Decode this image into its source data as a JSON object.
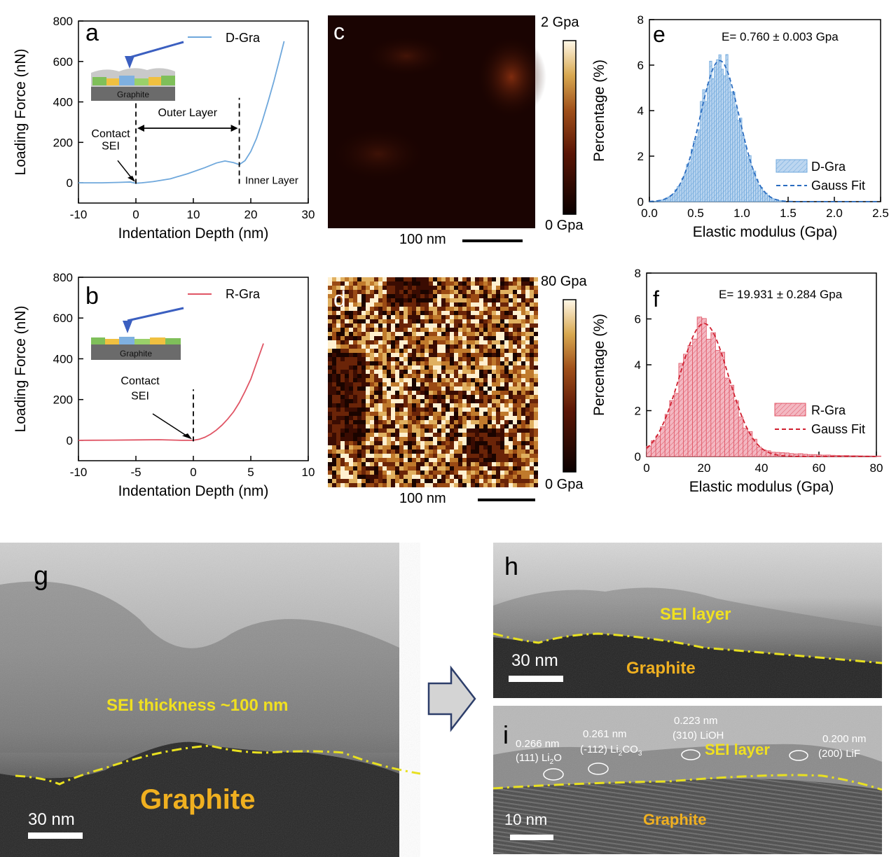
{
  "chart_data": [
    {
      "panel": "a",
      "type": "line",
      "ylabel": "Loading Force (nN)",
      "xlabel": "Indentation Depth (nm)",
      "xlim": [
        -10,
        30
      ],
      "ylim": [
        -100,
        800
      ],
      "xticks": [
        -10,
        0,
        10,
        20,
        30
      ],
      "yticks": [
        0,
        200,
        400,
        600,
        800
      ],
      "series": [
        {
          "name": "D-Gra",
          "color": "#6fa8dc",
          "x": [
            -10,
            -6,
            -3,
            -1,
            0,
            1,
            3,
            6,
            9,
            12,
            14,
            15.5,
            17,
            18,
            19,
            20,
            21,
            22,
            23,
            24,
            25,
            25.8
          ],
          "y": [
            0,
            0,
            2,
            4,
            -2,
            0,
            6,
            20,
            45,
            75,
            98,
            108,
            100,
            90,
            110,
            155,
            220,
            305,
            400,
            500,
            610,
            700
          ]
        }
      ],
      "annotations": [
        "Contact SEI",
        "Outer Layer",
        "Inner Layer"
      ],
      "markers": [
        0,
        18
      ],
      "inset_label": "Graphite"
    },
    {
      "panel": "b",
      "type": "line",
      "ylabel": "Loading Force (nN)",
      "xlabel": "Indentation Depth (nm)",
      "xlim": [
        -10,
        10
      ],
      "ylim": [
        -100,
        800
      ],
      "xticks": [
        -10,
        -5,
        0,
        5,
        10
      ],
      "yticks": [
        0,
        200,
        400,
        600,
        800
      ],
      "series": [
        {
          "name": "R-Gra",
          "color": "#e05565",
          "x": [
            -10,
            -7,
            -5,
            -3,
            -1,
            0,
            0.5,
            1,
            1.5,
            2,
            2.5,
            3,
            3.5,
            4,
            4.5,
            5,
            5.5,
            6.1
          ],
          "y": [
            0,
            1,
            2,
            3,
            0,
            0,
            5,
            15,
            30,
            50,
            75,
            105,
            140,
            185,
            240,
            300,
            380,
            475
          ]
        }
      ],
      "annotations": [
        "Contact SEI"
      ],
      "markers": [
        0
      ],
      "inset_label": "Graphite"
    },
    {
      "panel": "e",
      "type": "bar",
      "ylabel": "Percentage (%)",
      "xlabel": "Elastic modulus (Gpa)",
      "xlim": [
        0,
        2.5
      ],
      "ylim": [
        0,
        8
      ],
      "xticks": [
        0.0,
        0.5,
        1.0,
        1.5,
        2.0,
        2.5
      ],
      "yticks": [
        0,
        2,
        4,
        6,
        8
      ],
      "annotation": "E= 0.760 ± 0.003 Gpa",
      "fit": {
        "mean": 0.76,
        "sigma": 0.21,
        "peak": 6.2
      },
      "bin_width": 0.025,
      "legend": [
        "D-Gra",
        "Gauss Fit"
      ],
      "color": "#6fa8dc"
    },
    {
      "panel": "f",
      "type": "bar",
      "ylabel": "Percentage (%)",
      "xlabel": "Elastic modulus (Gpa)",
      "xlim": [
        0,
        80
      ],
      "ylim": [
        0,
        8
      ],
      "xticks": [
        0,
        20,
        40,
        60,
        80
      ],
      "yticks": [
        0,
        2,
        4,
        6,
        8
      ],
      "annotation": "E= 19.931 ± 0.284 Gpa",
      "fit": {
        "mean": 20,
        "sigma": 8.5,
        "peak": 5.8
      },
      "bin_width": 1.6,
      "legend": [
        "R-Gra",
        "Gauss Fit"
      ],
      "color": "#e05565"
    },
    {
      "panel": "c",
      "type": "heatmap",
      "colorbar_max": "2 Gpa",
      "colorbar_min": "0 Gpa",
      "scalebar": "100 nm"
    },
    {
      "panel": "d",
      "type": "heatmap",
      "colorbar_max": "80 Gpa",
      "colorbar_min": "0 Gpa",
      "scalebar": "100 nm"
    }
  ],
  "tem": {
    "g": {
      "label": "g",
      "sei": "SEI thickness  ~100 nm",
      "graphite": "Graphite",
      "scalebar": "30 nm"
    },
    "h": {
      "label": "h",
      "sei": "SEI layer",
      "graphite": "Graphite",
      "scalebar": "30 nm"
    },
    "i": {
      "label": "i",
      "sei": "SEI layer",
      "graphite": "Graphite",
      "scalebar": "10 nm",
      "lattice": [
        {
          "d": "0.266 nm",
          "hkl": "(111)",
          "phase": "Li",
          "sub": "2",
          "tail": "O"
        },
        {
          "d": "0.261 nm",
          "hkl": "(-112)",
          "phase": "Li",
          "sub": "2",
          "tail": "CO",
          "sub2": "3"
        },
        {
          "d": "0.223 nm",
          "hkl": "(310)",
          "phase": "LiOH"
        },
        {
          "d": "0.200 nm",
          "hkl": "(200)",
          "phase": "LiF"
        }
      ]
    }
  }
}
